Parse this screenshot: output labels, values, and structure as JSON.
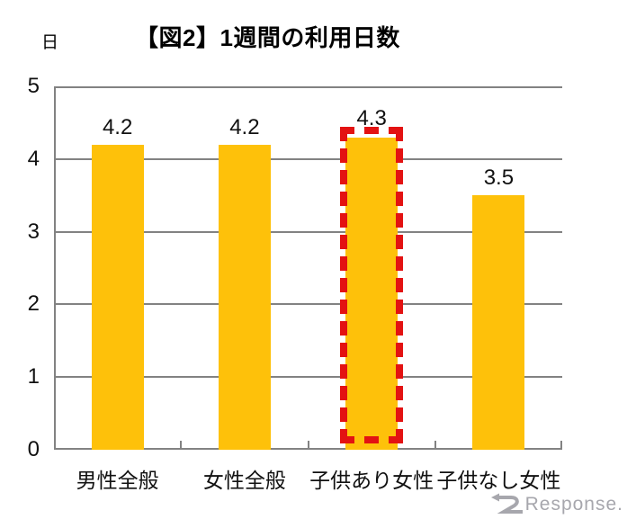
{
  "title": "【図2】1週間の利用日数",
  "axis_unit": "日",
  "chart_data": {
    "type": "bar",
    "title": "【図2】1週間の利用日数",
    "ylabel": "日",
    "categories": [
      "男性全般",
      "女性全般",
      "子供あり女性",
      "子供なし女性"
    ],
    "values": [
      4.2,
      4.2,
      4.3,
      3.5
    ],
    "data_labels": [
      "4.2",
      "4.2",
      "4.3",
      "3.5"
    ],
    "ylim": [
      0,
      5
    ],
    "yticks": [
      0,
      1,
      2,
      3,
      4,
      5
    ],
    "grid": true,
    "legend": "none",
    "bar_color": "#fec10a",
    "highlight": {
      "category_index": 2,
      "category": "子供あり女性",
      "style": "red-dashed-outline",
      "color": "#e31212"
    }
  },
  "watermark": {
    "text": "Response.",
    "color": "#a7a7ad"
  }
}
